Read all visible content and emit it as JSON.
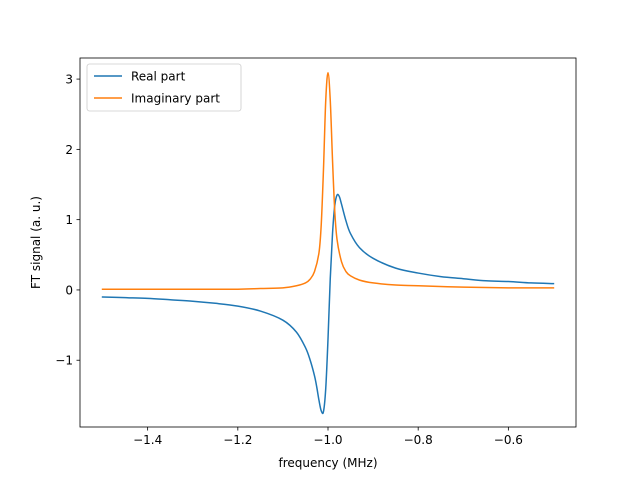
{
  "chart_data": {
    "type": "line",
    "xlabel": "frequency (MHz)",
    "ylabel": "FT signal (a. u.)",
    "xlim": [
      -1.55,
      -0.45
    ],
    "ylim": [
      -1.95,
      3.3
    ],
    "xticks": [
      -1.4,
      -1.2,
      -1.0,
      -0.8,
      -0.6
    ],
    "xtick_labels": [
      "−1.4",
      "−1.2",
      "−1.0",
      "−0.8",
      "−0.6"
    ],
    "yticks": [
      -1,
      0,
      1,
      2,
      3
    ],
    "ytick_labels": [
      "−1",
      "0",
      "1",
      "2",
      "3"
    ],
    "grid": false,
    "legend_position": "upper-left",
    "series": [
      {
        "name": "Real part",
        "color": "#1f77b4",
        "x": [
          -1.5,
          -1.45,
          -1.4,
          -1.35,
          -1.3,
          -1.25,
          -1.2,
          -1.15,
          -1.1,
          -1.07,
          -1.05,
          -1.04,
          -1.03,
          -1.025,
          -1.02,
          -1.015,
          -1.01,
          -1.005,
          -1.0,
          -0.995,
          -0.99,
          -0.985,
          -0.98,
          -0.975,
          -0.97,
          -0.96,
          -0.95,
          -0.93,
          -0.9,
          -0.85,
          -0.8,
          -0.75,
          -0.7,
          -0.65,
          -0.6,
          -0.55,
          -0.5
        ],
        "y": [
          -0.1,
          -0.11,
          -0.12,
          -0.14,
          -0.16,
          -0.19,
          -0.23,
          -0.3,
          -0.43,
          -0.6,
          -0.82,
          -0.99,
          -1.22,
          -1.38,
          -1.57,
          -1.72,
          -1.73,
          -1.4,
          -0.7,
          0.16,
          0.8,
          1.2,
          1.35,
          1.33,
          1.22,
          0.98,
          0.8,
          0.6,
          0.45,
          0.31,
          0.24,
          0.19,
          0.16,
          0.13,
          0.12,
          0.1,
          0.09
        ]
      },
      {
        "name": "Imaginary part",
        "color": "#ff7f0e",
        "x": [
          -1.5,
          -1.4,
          -1.3,
          -1.2,
          -1.15,
          -1.1,
          -1.07,
          -1.05,
          -1.04,
          -1.03,
          -1.02,
          -1.015,
          -1.01,
          -1.005,
          -1.0,
          -0.995,
          -0.99,
          -0.985,
          -0.98,
          -0.97,
          -0.96,
          -0.95,
          -0.93,
          -0.9,
          -0.85,
          -0.8,
          -0.7,
          -0.6,
          -0.5
        ],
        "y": [
          0.01,
          0.01,
          0.01,
          0.01,
          0.02,
          0.03,
          0.06,
          0.1,
          0.15,
          0.26,
          0.53,
          0.93,
          1.72,
          2.7,
          3.09,
          2.7,
          1.85,
          1.12,
          0.72,
          0.4,
          0.26,
          0.2,
          0.14,
          0.1,
          0.07,
          0.06,
          0.04,
          0.03,
          0.03
        ]
      }
    ]
  }
}
